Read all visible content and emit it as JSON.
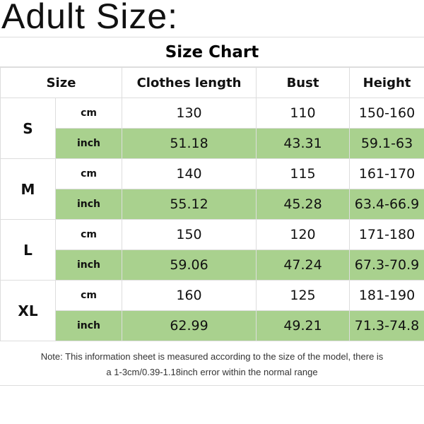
{
  "heading": "Adult Size:",
  "table": {
    "title": "Size Chart",
    "headers": [
      "Size",
      "Clothes length",
      "Bust",
      "Height"
    ],
    "rows": [
      {
        "size": "S",
        "cm": {
          "unit": "cm",
          "values": [
            "130",
            "110",
            "150-160"
          ]
        },
        "inch": {
          "unit": "inch",
          "values": [
            "51.18",
            "43.31",
            "59.1-63"
          ]
        }
      },
      {
        "size": "M",
        "cm": {
          "unit": "cm",
          "values": [
            "140",
            "115",
            "161-170"
          ]
        },
        "inch": {
          "unit": "inch",
          "values": [
            "55.12",
            "45.28",
            "63.4-66.9"
          ]
        }
      },
      {
        "size": "L",
        "cm": {
          "unit": "cm",
          "values": [
            "150",
            "120",
            "171-180"
          ]
        },
        "inch": {
          "unit": "inch",
          "values": [
            "59.06",
            "47.24",
            "67.3-70.9"
          ]
        }
      },
      {
        "size": "XL",
        "cm": {
          "unit": "cm",
          "values": [
            "160",
            "125",
            "181-190"
          ]
        },
        "inch": {
          "unit": "inch",
          "values": [
            "62.99",
            "49.21",
            "71.3-74.8"
          ]
        }
      }
    ],
    "highlight_color": "#a9d18e"
  },
  "note": {
    "line1": "Note: This information sheet is measured according to the size of the model, there is",
    "line2": "a 1-3cm/0.39-1.18inch error within the normal range"
  }
}
